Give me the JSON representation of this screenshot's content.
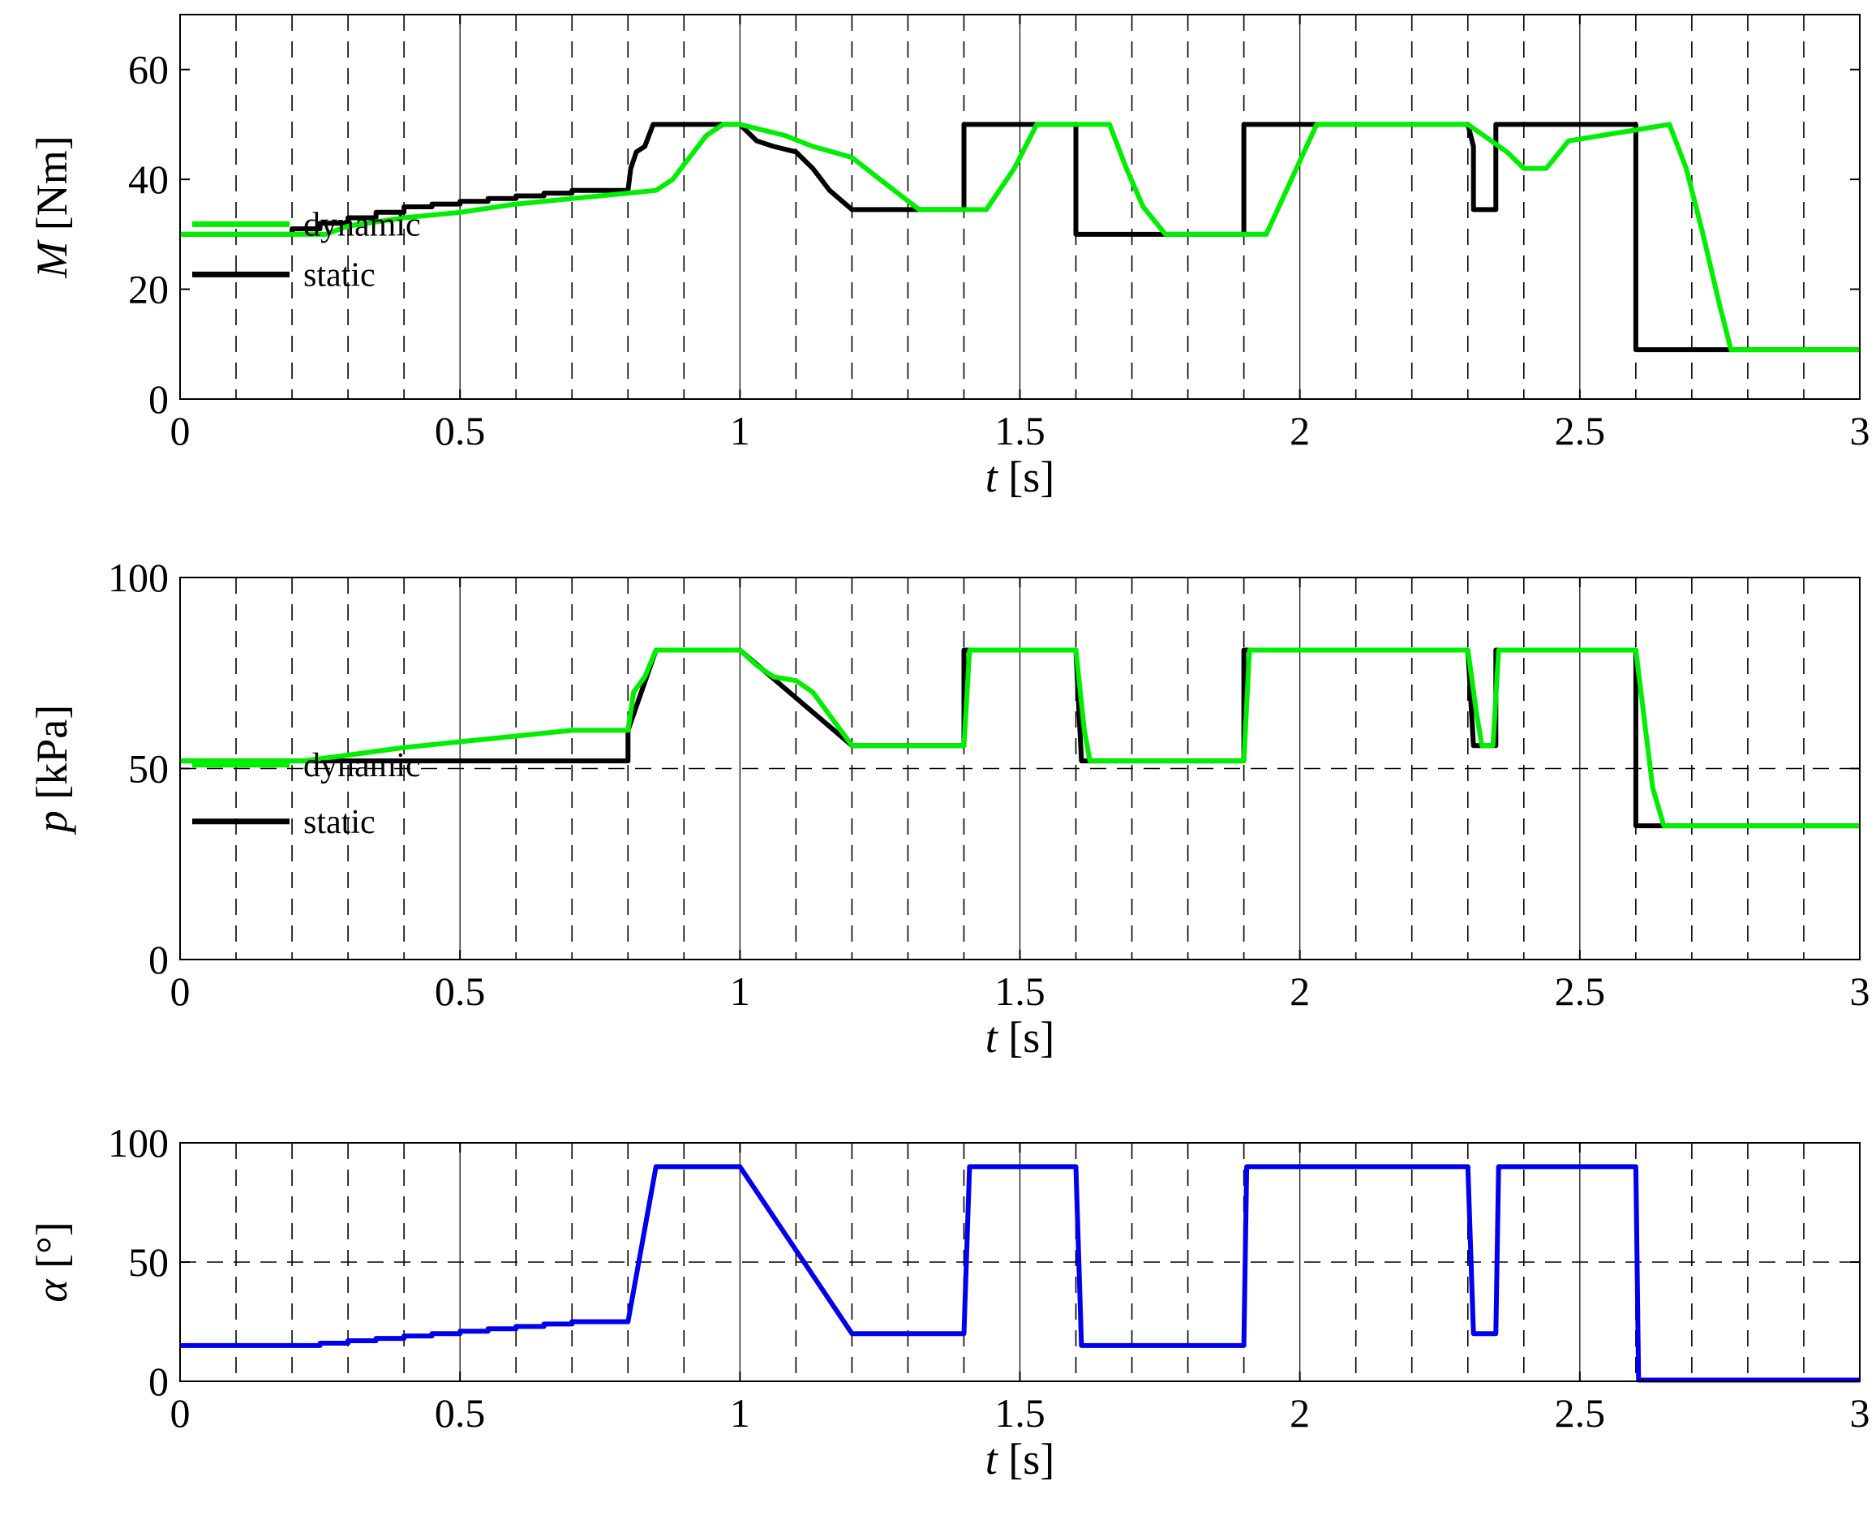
{
  "colors": {
    "dynamic": "#00ee00",
    "static": "#000000",
    "alpha": "#0000ee"
  },
  "charts": [
    {
      "id": "torque",
      "type": "line",
      "xlabel": {
        "sym": "t",
        "unit": "[s]"
      },
      "ylabel": {
        "sym": "M",
        "unit": "[Nm]"
      },
      "xlim": [
        0,
        3
      ],
      "ylim": [
        0,
        70
      ],
      "xticks": [
        0,
        0.5,
        1,
        1.5,
        2,
        2.5,
        3
      ],
      "xtick_labels": [
        "0",
        "0.5",
        "1",
        "1.5",
        "2",
        "2.5",
        "3"
      ],
      "yticks": [
        0,
        20,
        40,
        60
      ],
      "ytick_labels": [
        "0",
        "20",
        "40",
        "60"
      ],
      "y_dashed_grid": [],
      "legend": {
        "position": "bottom-left",
        "entries": [
          "dynamic",
          "static"
        ]
      },
      "series": [
        {
          "name": "static",
          "color_key": "static",
          "x": [
            0,
            0.2,
            0.2,
            0.25,
            0.25,
            0.3,
            0.3,
            0.35,
            0.35,
            0.4,
            0.4,
            0.45,
            0.45,
            0.5,
            0.5,
            0.55,
            0.55,
            0.6,
            0.6,
            0.65,
            0.65,
            0.7,
            0.7,
            0.75,
            0.75,
            0.8,
            0.805,
            0.815,
            0.83,
            0.845,
            0.85,
            1.0,
            1.03,
            1.06,
            1.1,
            1.13,
            1.16,
            1.2,
            1.4,
            1.4,
            1.6,
            1.6,
            1.75,
            1.9,
            1.9,
            2.3,
            2.31,
            2.31,
            2.35,
            2.35,
            2.6,
            2.6,
            3.0
          ],
          "y": [
            30,
            30,
            31,
            31,
            32,
            32,
            33,
            33,
            34,
            34,
            35,
            35,
            35.5,
            35.5,
            36,
            36,
            36.5,
            36.5,
            37,
            37,
            37.5,
            37.5,
            38,
            38,
            38,
            38,
            42,
            45,
            46,
            50,
            50,
            50,
            47,
            46,
            45,
            42,
            38,
            34.5,
            34.5,
            50,
            50,
            30,
            30,
            30,
            50,
            50,
            46,
            34.5,
            34.5,
            50,
            50,
            9,
            9
          ]
        },
        {
          "name": "dynamic",
          "color_key": "dynamic",
          "x": [
            0,
            0.26,
            0.3,
            0.4,
            0.5,
            0.6,
            0.7,
            0.8,
            0.85,
            0.88,
            0.91,
            0.94,
            0.97,
            1.0,
            1.08,
            1.13,
            1.2,
            1.25,
            1.32,
            1.44,
            1.49,
            1.53,
            1.66,
            1.69,
            1.72,
            1.76,
            1.94,
            2.03,
            2.3,
            2.37,
            2.4,
            2.44,
            2.48,
            2.66,
            2.69,
            2.72,
            2.75,
            2.77,
            3.0
          ],
          "y": [
            30,
            30,
            31.5,
            33,
            34,
            35.5,
            36.5,
            37.5,
            38,
            40,
            44,
            48,
            50,
            50,
            48,
            46,
            44,
            40,
            34.5,
            34.5,
            42,
            50,
            50,
            42,
            35,
            30,
            30,
            50,
            50,
            45,
            42,
            42,
            47,
            50,
            42,
            30,
            17,
            9,
            9
          ]
        }
      ]
    },
    {
      "id": "pressure",
      "type": "line",
      "xlabel": {
        "sym": "t",
        "unit": "[s]"
      },
      "ylabel": {
        "sym": "p",
        "unit": "[kPa]"
      },
      "xlim": [
        0,
        3
      ],
      "ylim": [
        0,
        100
      ],
      "xticks": [
        0,
        0.5,
        1,
        1.5,
        2,
        2.5,
        3
      ],
      "xtick_labels": [
        "0",
        "0.5",
        "1",
        "1.5",
        "2",
        "2.5",
        "3"
      ],
      "yticks": [
        0,
        50,
        100
      ],
      "ytick_labels": [
        "0",
        "50",
        "100"
      ],
      "y_dashed_grid": [
        50
      ],
      "legend": {
        "position": "bottom-left",
        "entries": [
          "dynamic",
          "static"
        ]
      },
      "series": [
        {
          "name": "static",
          "color_key": "static",
          "x": [
            0,
            0.8,
            0.8,
            0.85,
            1.0,
            1.2,
            1.4,
            1.4,
            1.6,
            1.61,
            1.9,
            1.9,
            2.3,
            2.31,
            2.35,
            2.35,
            2.6,
            2.6,
            3.0
          ],
          "y": [
            52,
            52,
            60,
            81,
            81,
            56,
            56,
            81,
            81,
            52,
            52,
            81,
            81,
            56,
            56,
            81,
            81,
            35,
            35
          ]
        },
        {
          "name": "dynamic",
          "color_key": "dynamic",
          "x": [
            0,
            0.22,
            0.3,
            0.4,
            0.5,
            0.6,
            0.7,
            0.8,
            0.81,
            0.83,
            0.85,
            1.0,
            1.03,
            1.06,
            1.1,
            1.13,
            1.16,
            1.2,
            1.4,
            1.41,
            1.6,
            1.615,
            1.625,
            1.9,
            1.91,
            2.3,
            2.315,
            2.325,
            2.345,
            2.355,
            2.6,
            2.63,
            2.65,
            3.0
          ],
          "y": [
            52,
            52,
            53.5,
            55.5,
            57,
            58.5,
            60,
            60,
            70,
            74,
            81,
            81,
            77,
            74,
            73,
            70,
            64,
            56,
            56,
            81,
            81,
            60,
            52,
            52,
            81,
            81,
            65,
            56,
            56,
            81,
            81,
            45,
            35,
            35
          ]
        }
      ]
    },
    {
      "id": "alpha",
      "type": "line",
      "xlabel": {
        "sym": "t",
        "unit": "[s]"
      },
      "ylabel": {
        "sym": "α",
        "unit": "[°]"
      },
      "xlim": [
        0,
        3
      ],
      "ylim": [
        0,
        100
      ],
      "xticks": [
        0,
        0.5,
        1,
        1.5,
        2,
        2.5,
        3
      ],
      "xtick_labels": [
        "0",
        "0.5",
        "1",
        "1.5",
        "2",
        "2.5",
        "3"
      ],
      "yticks": [
        0,
        50,
        100
      ],
      "ytick_labels": [
        "0",
        "50",
        "100"
      ],
      "y_dashed_grid": [
        50
      ],
      "legend": null,
      "series": [
        {
          "name": "",
          "color_key": "alpha",
          "x": [
            0,
            0.25,
            0.25,
            0.3,
            0.3,
            0.35,
            0.35,
            0.4,
            0.4,
            0.45,
            0.45,
            0.5,
            0.5,
            0.55,
            0.55,
            0.6,
            0.6,
            0.65,
            0.65,
            0.7,
            0.7,
            0.8,
            0.85,
            1.0,
            1.2,
            1.4,
            1.41,
            1.6,
            1.61,
            1.9,
            1.905,
            2.3,
            2.31,
            2.35,
            2.355,
            2.6,
            2.605,
            3.0
          ],
          "y": [
            15,
            15,
            16,
            16,
            17,
            17,
            18,
            18,
            19,
            19,
            20,
            20,
            21,
            21,
            22,
            22,
            23,
            23,
            24,
            24,
            25,
            25,
            90,
            90,
            20,
            20,
            90,
            90,
            15,
            15,
            90,
            90,
            20,
            20,
            90,
            90,
            0.5,
            0.5
          ]
        }
      ]
    }
  ]
}
